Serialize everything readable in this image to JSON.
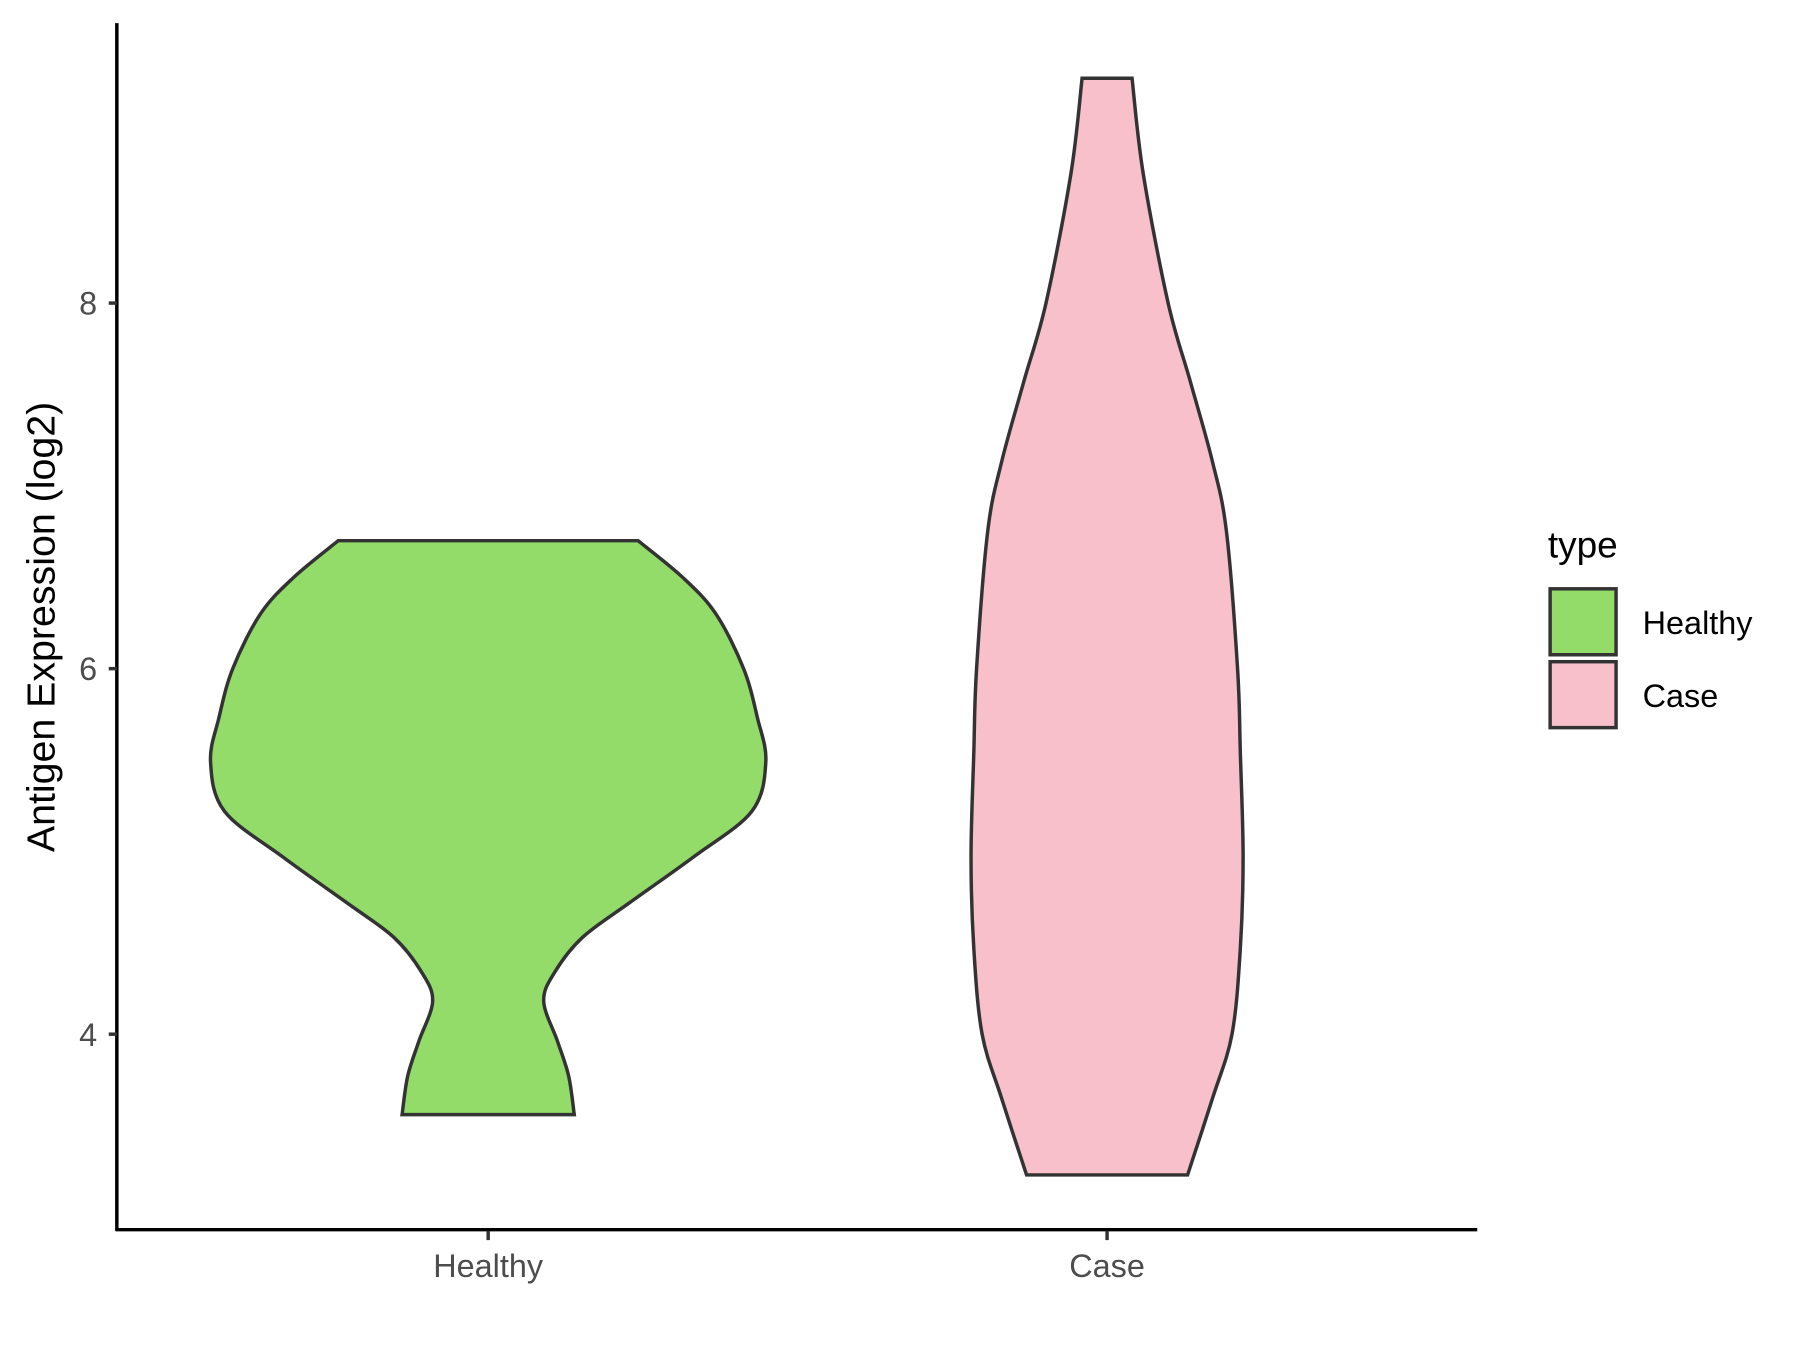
{
  "chart_data": {
    "type": "violin",
    "title": "",
    "xlabel": "",
    "ylabel": "Antigen Expression (log2)",
    "categories": [
      "Healthy",
      "Case"
    ],
    "y_ticks": [
      4,
      6,
      8
    ],
    "ylim": [
      3.0,
      9.5
    ],
    "grid": false,
    "legend": {
      "title": "type",
      "placement": "right",
      "entries": [
        "Healthy",
        "Case"
      ]
    },
    "series": [
      {
        "name": "Healthy",
        "color": "#93DC6A",
        "min": 3.56,
        "max": 6.7,
        "density_profile": [
          [
            6.7,
            0.54
          ],
          [
            6.5,
            0.7
          ],
          [
            6.3,
            0.82
          ],
          [
            6.0,
            0.92
          ],
          [
            5.73,
            0.97
          ],
          [
            5.49,
            1.0
          ],
          [
            5.22,
            0.95
          ],
          [
            4.97,
            0.74
          ],
          [
            4.72,
            0.51
          ],
          [
            4.53,
            0.34
          ],
          [
            4.34,
            0.24
          ],
          [
            4.18,
            0.2
          ],
          [
            3.96,
            0.25
          ],
          [
            3.77,
            0.29
          ],
          [
            3.56,
            0.31
          ]
        ]
      },
      {
        "name": "Case",
        "color": "#F7C0CB",
        "min": 3.23,
        "max": 9.23,
        "density_profile": [
          [
            9.23,
            0.09
          ],
          [
            8.71,
            0.13
          ],
          [
            8.0,
            0.22
          ],
          [
            7.57,
            0.3
          ],
          [
            7.13,
            0.38
          ],
          [
            6.75,
            0.43
          ],
          [
            6.0,
            0.47
          ],
          [
            5.54,
            0.48
          ],
          [
            4.97,
            0.49
          ],
          [
            4.47,
            0.48
          ],
          [
            4.0,
            0.45
          ],
          [
            3.65,
            0.38
          ],
          [
            3.23,
            0.29
          ]
        ]
      }
    ]
  }
}
